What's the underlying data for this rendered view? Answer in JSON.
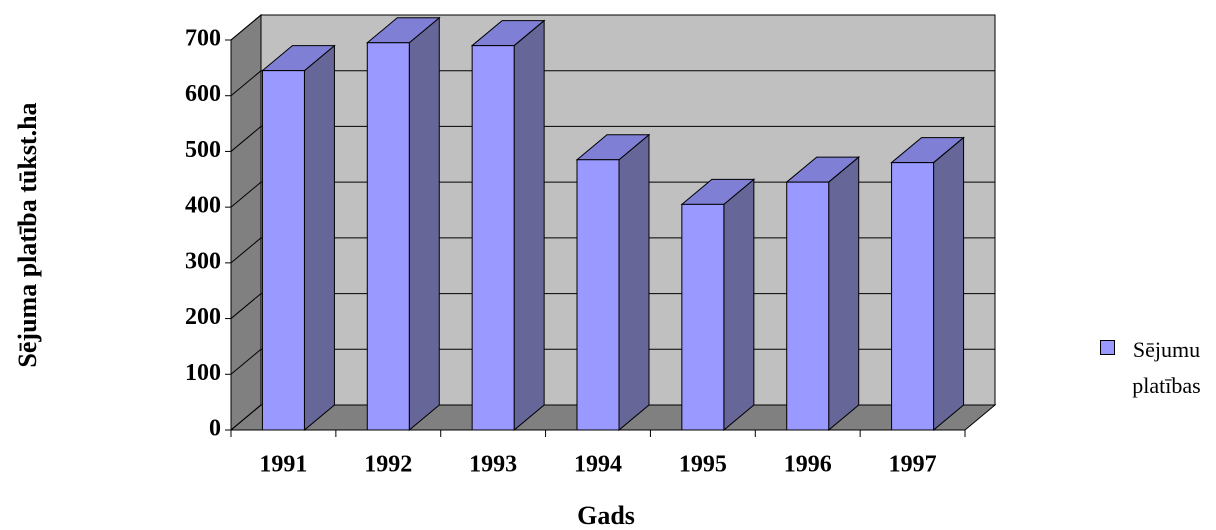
{
  "chart_data": {
    "type": "bar3d",
    "x_label": "Gads",
    "y_label": "Sējuma platība tūkst.ha",
    "categories": [
      "1991",
      "1992",
      "1993",
      "1994",
      "1995",
      "1996",
      "1997"
    ],
    "series": [
      {
        "name": "Sējumu platības",
        "color": "#9999ff",
        "values": [
          645,
          695,
          690,
          485,
          405,
          445,
          480
        ]
      }
    ],
    "ylim": [
      0,
      700
    ],
    "yticks": [
      0,
      100,
      200,
      300,
      400,
      500,
      600,
      700
    ],
    "grid": true,
    "legend": "right"
  }
}
